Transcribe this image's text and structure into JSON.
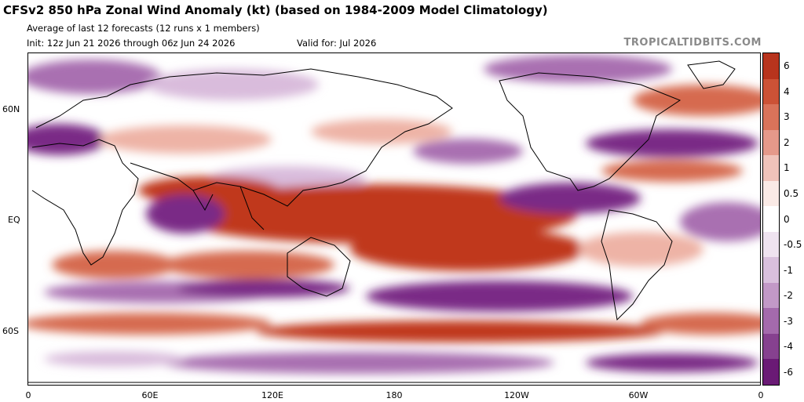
{
  "header": {
    "title": "CFSv2 850 hPa Zonal Wind Anomaly (kt) (based on 1984-2009 Model Climatology)",
    "subtitle": "Average of last 12 forecasts (12 runs x 1 members)",
    "init": "Init: 12z Jun 21 2026 through 06z Jun 24 2026",
    "valid": "Valid for: Jul 2026",
    "brand": "TROPICALTIDBITS.COM"
  },
  "axes": {
    "y_labels": [
      "60N",
      "EQ",
      "60S"
    ],
    "x_labels": [
      "0",
      "60E",
      "120E",
      "180",
      "120W",
      "60W",
      "0"
    ]
  },
  "colorbar": {
    "labels": [
      "6",
      "4",
      "3",
      "2",
      "1",
      "0.5",
      "0",
      "-0.5",
      "-1",
      "-2",
      "-3",
      "-4",
      "-6"
    ],
    "colors": [
      "#b8341d",
      "#cc5236",
      "#d9735a",
      "#e5998a",
      "#f0c3ba",
      "#faeae6",
      "#ffffff",
      "#efe3f0",
      "#d9c0dd",
      "#c299c7",
      "#a46aac",
      "#86418f",
      "#6a1a75"
    ]
  },
  "map_colors": {
    "strong_pos": "#c0391f",
    "pos": "#d66a50",
    "weak_pos": "#eeb3a6",
    "weak_neg": "#d9bcdc",
    "neg": "#a96fb1",
    "strong_neg": "#7a2a86",
    "land_line": "#000000"
  }
}
